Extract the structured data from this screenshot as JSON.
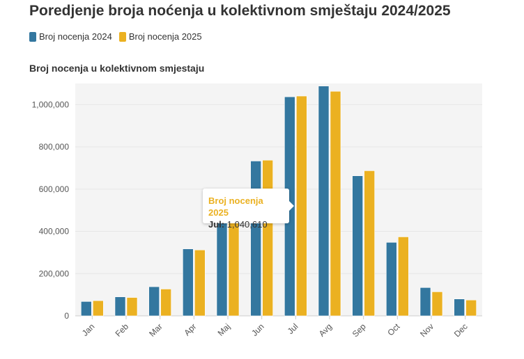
{
  "title": "Poredjenje broja noćenja u kolektivnom smještaju 2024/2025",
  "chart_data": {
    "type": "bar",
    "title": "Poredjenje broja noćenja u kolektivnom smještaju 2024/2025",
    "subtitle": "Broj nocenja u kolektivnom smjestaju",
    "xlabel": "",
    "ylabel": "",
    "categories": [
      "Jan",
      "Feb",
      "Mar",
      "Apr",
      "Maj",
      "Jun",
      "Jul",
      "Avg",
      "Sep",
      "Oct",
      "Nov",
      "Dec"
    ],
    "series": [
      {
        "name": "Broj nocenja 2024",
        "color": "#33779f",
        "values": [
          68000,
          90000,
          138000,
          317000,
          460000,
          733000,
          1037000,
          1088000,
          663000,
          348000,
          134000,
          80000
        ]
      },
      {
        "name": "Broj nocenja 2025",
        "color": "#ebb121",
        "values": [
          72000,
          87000,
          127000,
          312000,
          450000,
          737000,
          1040610,
          1063000,
          687000,
          374000,
          114000,
          75000
        ]
      }
    ],
    "ylim": [
      0,
      1100000
    ],
    "yticks": [
      0,
      200000,
      400000,
      600000,
      800000,
      1000000
    ],
    "ytick_labels": [
      "0",
      "200,000",
      "400,000",
      "600,000",
      "800,000",
      "1,000,000"
    ],
    "grid": true,
    "legend": "top-left"
  },
  "tooltip": {
    "series": "Broj nocenja 2025",
    "label": "Jul:",
    "value": "1,040,610"
  }
}
